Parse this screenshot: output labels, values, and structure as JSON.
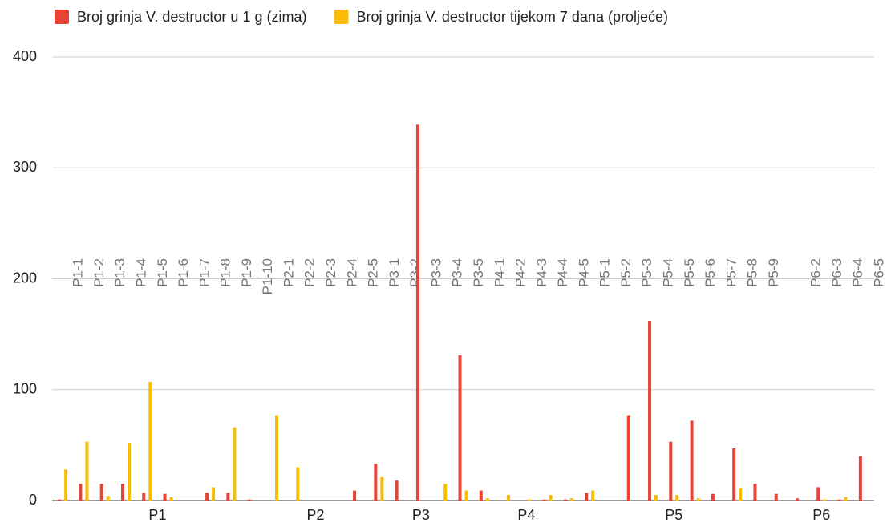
{
  "chart_data": {
    "type": "bar",
    "categories": [
      "P1-1",
      "P1-2",
      "P1-3",
      "P1-4",
      "P1-5",
      "P1-6",
      "P1-7",
      "P1-8",
      "P1-9",
      "P1-10",
      "P2-1",
      "P2-2",
      "P2-3",
      "P2-4",
      "P2-5",
      "P3-1",
      "P3-2",
      "P3-3",
      "P3-4",
      "P3-5",
      "P4-1",
      "P4-2",
      "P4-3",
      "P4-4",
      "P4-5",
      "P5-1",
      "P5-2",
      "P5-3",
      "P5-4",
      "P5-5",
      "P5-6",
      "P5-7",
      "P5-8",
      "P5-9",
      null,
      "P6-2",
      "P6-3",
      "P6-4",
      "P6-5"
    ],
    "groups": [
      {
        "label": "P1",
        "count": 10
      },
      {
        "label": "P2",
        "count": 5
      },
      {
        "label": "P3",
        "count": 5
      },
      {
        "label": "P4",
        "count": 5
      },
      {
        "label": "P5",
        "count": 9
      },
      {
        "label": "P6",
        "count": 5
      }
    ],
    "series": [
      {
        "name": "Broj grinja V. destructor u 1 g (zima)",
        "color": "#ea4335",
        "values": [
          1,
          15,
          15,
          15,
          7,
          6,
          0,
          7,
          7,
          1,
          0,
          0,
          0,
          0,
          9,
          33,
          18,
          339,
          0,
          131,
          9,
          0,
          0,
          1,
          1,
          7,
          0,
          77,
          162,
          53,
          72,
          6,
          47,
          15,
          6,
          2,
          12,
          1,
          40
        ]
      },
      {
        "name": "Broj grinja V. destructor tijekom 7 dana (proljeće)",
        "color": "#fbbc04",
        "values": [
          28,
          53,
          4,
          52,
          107,
          3,
          0,
          12,
          66,
          0,
          77,
          30,
          0,
          0,
          0,
          21,
          0,
          0,
          15,
          9,
          2,
          5,
          1,
          5,
          2,
          9,
          0,
          0,
          5,
          5,
          2,
          0,
          11,
          0,
          0,
          0,
          1,
          3,
          0
        ]
      }
    ],
    "ylim": [
      0,
      400
    ],
    "yticks": [
      0,
      100,
      200,
      300,
      400
    ],
    "grid": true,
    "legend": "top"
  }
}
